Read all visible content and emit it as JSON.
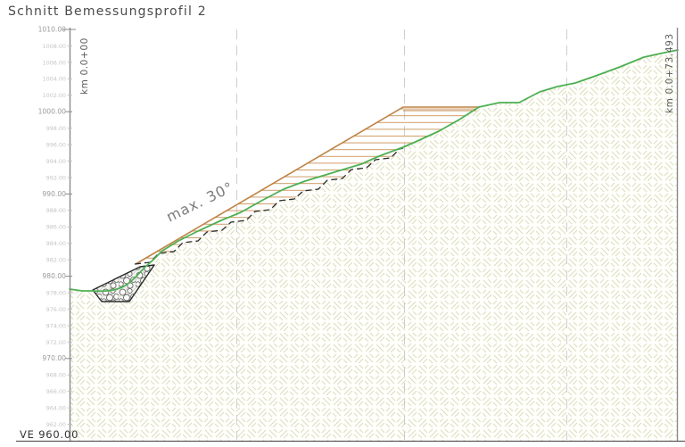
{
  "title": "Schnitt Bemessungsprofil 2",
  "datum_label": "VE 960.00",
  "stations": {
    "left": "km 0.0+00",
    "right": "km 0.0+73.493"
  },
  "annotations": {
    "max_slope": "max. 30°"
  },
  "elevation_axis": {
    "top_value": "1010.00",
    "bottom_value": "962.00",
    "step_m": 2,
    "labels": [
      {
        "text": "1010.00",
        "major": true
      },
      {
        "text": "1008.00",
        "major": false
      },
      {
        "text": "1006.00",
        "major": false
      },
      {
        "text": "1004.00",
        "major": false
      },
      {
        "text": "1002.00",
        "major": false
      },
      {
        "text": "1000.00",
        "major": true
      },
      {
        "text": "998.00",
        "major": false
      },
      {
        "text": "996.00",
        "major": false
      },
      {
        "text": "994.00",
        "major": false
      },
      {
        "text": "992.00",
        "major": false
      },
      {
        "text": "990.00",
        "major": true
      },
      {
        "text": "988.00",
        "major": false
      },
      {
        "text": "986.00",
        "major": false
      },
      {
        "text": "984.00",
        "major": false
      },
      {
        "text": "982.00",
        "major": false
      },
      {
        "text": "980.00",
        "major": true
      },
      {
        "text": "978.00",
        "major": false
      },
      {
        "text": "976.00",
        "major": false
      },
      {
        "text": "974.00",
        "major": false
      },
      {
        "text": "972.00",
        "major": false
      },
      {
        "text": "970.00",
        "major": true
      },
      {
        "text": "968.00",
        "major": false
      },
      {
        "text": "966.00",
        "major": false
      },
      {
        "text": "964.00",
        "major": false
      },
      {
        "text": "962.00",
        "major": false
      }
    ]
  },
  "colors": {
    "terrain-line": "#4db052",
    "reinforcement-line": "#bf8448",
    "reinforcement-hatch": "#cf9c66",
    "ground-hatch": "#dcdcbe",
    "steps-line": "#2a2a2a",
    "grid-line": "#c9c9c9",
    "axis-line": "#8a8a8a",
    "label-major": "#9a9a9a",
    "label-minor": "#c6c6c6",
    "annotation": "#7c7c7c",
    "stone-outline": "#666666"
  }
}
